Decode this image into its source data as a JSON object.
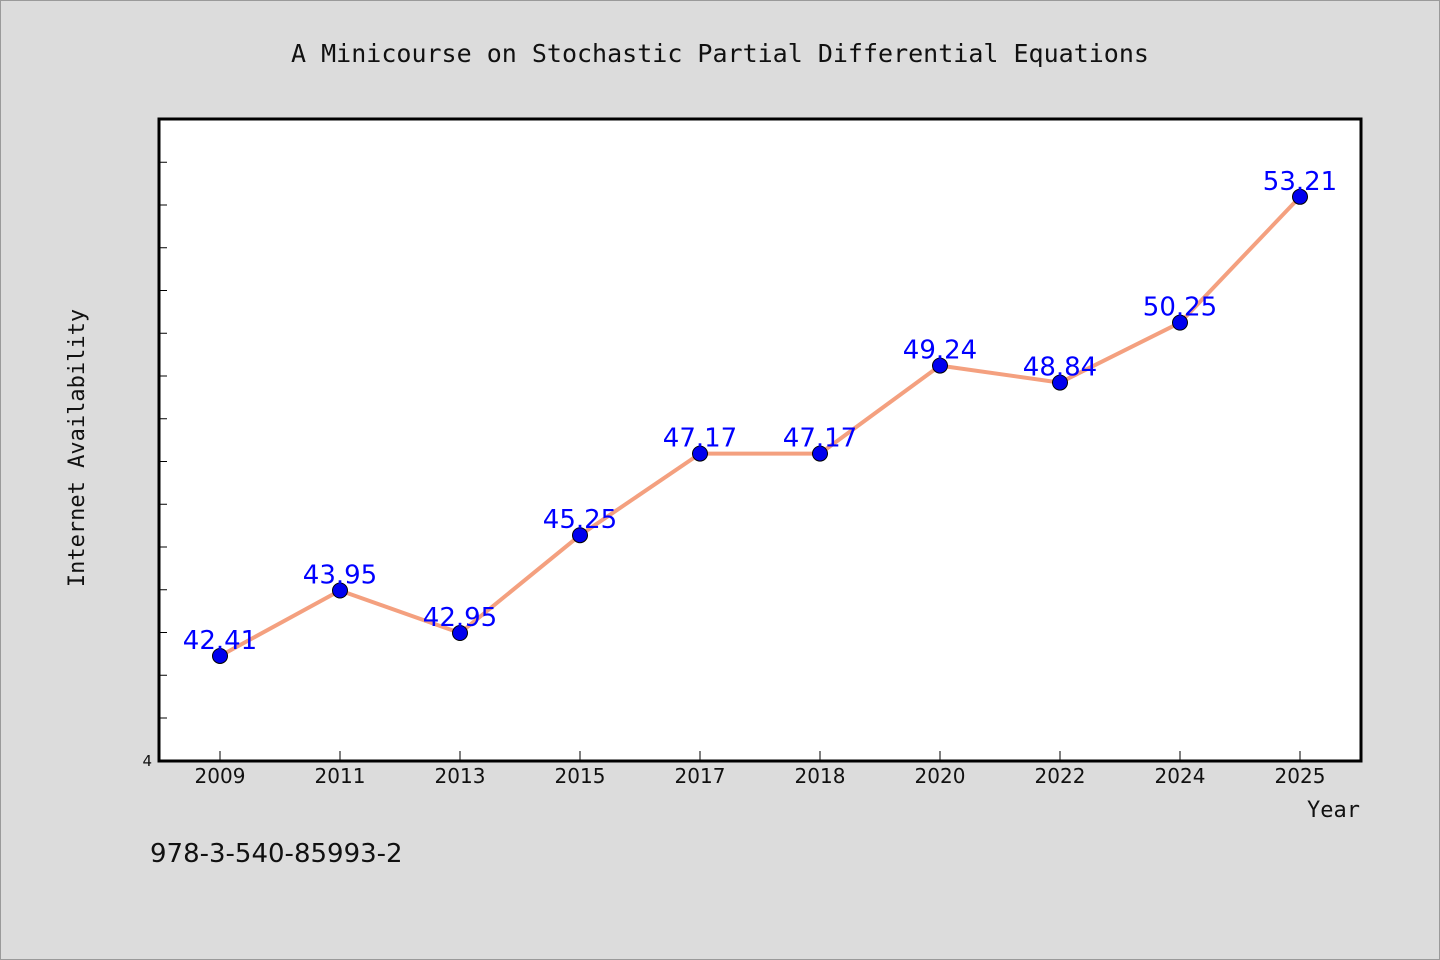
{
  "caption": "978-3-540-85993-2",
  "chart_data": {
    "type": "line",
    "title": "A Minicourse on Stochastic Partial Differential Equations",
    "xlabel": "Year",
    "ylabel": "Internet Availability",
    "categories": [
      "2009",
      "2011",
      "2013",
      "2015",
      "2017",
      "2018",
      "2020",
      "2022",
      "2024",
      "2025"
    ],
    "series": [
      {
        "values": [
          42.41,
          43.95,
          42.95,
          45.25,
          47.17,
          47.17,
          49.24,
          48.84,
          50.25,
          53.21
        ],
        "labels": [
          "42.41",
          "43.95",
          "42.95",
          "45.25",
          "47.17",
          "47.17",
          "49.24",
          "48.84",
          "50.25",
          "53.21"
        ]
      }
    ],
    "y_tick_labels": [
      "4"
    ],
    "ylim": [
      39.94,
      55.04
    ],
    "grid": false,
    "line_color": "#f4a07f",
    "marker_color": "#0000ee",
    "label_color": "#0000ff"
  }
}
